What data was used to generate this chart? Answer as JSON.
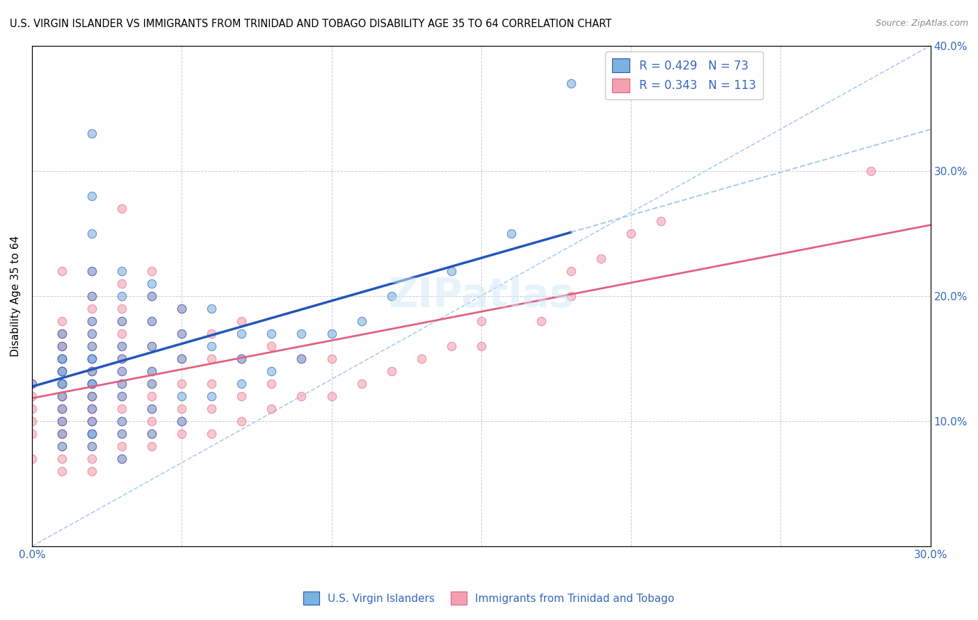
{
  "title": "U.S. VIRGIN ISLANDER VS IMMIGRANTS FROM TRINIDAD AND TOBAGO DISABILITY AGE 35 TO 64 CORRELATION CHART",
  "source": "Source: ZipAtlas.com",
  "ylabel": "Disability Age 35 to 64",
  "xlabel": "",
  "xlim": [
    0.0,
    0.3
  ],
  "ylim": [
    0.0,
    0.4
  ],
  "xticks": [
    0.0,
    0.05,
    0.1,
    0.15,
    0.2,
    0.25,
    0.3
  ],
  "yticks": [
    0.0,
    0.1,
    0.2,
    0.3,
    0.4
  ],
  "xticklabels": [
    "0.0%",
    "",
    "",
    "",
    "",
    "",
    "30.0%"
  ],
  "yticklabels": [
    "",
    "10.0%",
    "20.0%",
    "30.0%",
    "40.0%"
  ],
  "blue_R": 0.429,
  "blue_N": 73,
  "pink_R": 0.343,
  "pink_N": 113,
  "blue_color": "#7ab3e0",
  "pink_color": "#f4a0b0",
  "blue_line_color": "#2255bb",
  "pink_line_color": "#e06080",
  "diagonal_color": "#aaccee",
  "legend_R_color": "#3366cc",
  "legend_N_color": "#3366cc",
  "watermark": "ZIPatlas",
  "blue_scatter_x": [
    0.0,
    0.01,
    0.01,
    0.01,
    0.01,
    0.01,
    0.01,
    0.01,
    0.01,
    0.01,
    0.01,
    0.01,
    0.01,
    0.01,
    0.02,
    0.02,
    0.02,
    0.02,
    0.02,
    0.02,
    0.02,
    0.02,
    0.02,
    0.02,
    0.02,
    0.02,
    0.02,
    0.02,
    0.02,
    0.02,
    0.02,
    0.02,
    0.02,
    0.03,
    0.03,
    0.03,
    0.03,
    0.03,
    0.03,
    0.03,
    0.03,
    0.03,
    0.03,
    0.03,
    0.04,
    0.04,
    0.04,
    0.04,
    0.04,
    0.04,
    0.04,
    0.04,
    0.05,
    0.05,
    0.05,
    0.05,
    0.05,
    0.06,
    0.06,
    0.06,
    0.07,
    0.07,
    0.07,
    0.08,
    0.08,
    0.09,
    0.09,
    0.1,
    0.11,
    0.12,
    0.14,
    0.16,
    0.18
  ],
  "blue_scatter_y": [
    0.13,
    0.08,
    0.09,
    0.1,
    0.11,
    0.12,
    0.13,
    0.13,
    0.14,
    0.14,
    0.15,
    0.15,
    0.16,
    0.17,
    0.08,
    0.09,
    0.09,
    0.1,
    0.11,
    0.12,
    0.13,
    0.13,
    0.14,
    0.15,
    0.15,
    0.16,
    0.17,
    0.18,
    0.2,
    0.22,
    0.25,
    0.28,
    0.33,
    0.07,
    0.09,
    0.1,
    0.12,
    0.13,
    0.14,
    0.15,
    0.16,
    0.18,
    0.2,
    0.22,
    0.09,
    0.11,
    0.13,
    0.14,
    0.16,
    0.18,
    0.2,
    0.21,
    0.1,
    0.12,
    0.15,
    0.17,
    0.19,
    0.12,
    0.16,
    0.19,
    0.13,
    0.15,
    0.17,
    0.14,
    0.17,
    0.15,
    0.17,
    0.17,
    0.18,
    0.2,
    0.22,
    0.25,
    0.37
  ],
  "pink_scatter_x": [
    0.0,
    0.0,
    0.0,
    0.0,
    0.0,
    0.0,
    0.01,
    0.01,
    0.01,
    0.01,
    0.01,
    0.01,
    0.01,
    0.01,
    0.01,
    0.01,
    0.01,
    0.01,
    0.01,
    0.01,
    0.01,
    0.01,
    0.01,
    0.01,
    0.01,
    0.01,
    0.01,
    0.01,
    0.01,
    0.01,
    0.02,
    0.02,
    0.02,
    0.02,
    0.02,
    0.02,
    0.02,
    0.02,
    0.02,
    0.02,
    0.02,
    0.02,
    0.02,
    0.02,
    0.02,
    0.02,
    0.02,
    0.02,
    0.02,
    0.02,
    0.02,
    0.03,
    0.03,
    0.03,
    0.03,
    0.03,
    0.03,
    0.03,
    0.03,
    0.03,
    0.03,
    0.03,
    0.03,
    0.03,
    0.03,
    0.03,
    0.04,
    0.04,
    0.04,
    0.04,
    0.04,
    0.04,
    0.04,
    0.04,
    0.04,
    0.04,
    0.04,
    0.05,
    0.05,
    0.05,
    0.05,
    0.05,
    0.05,
    0.05,
    0.06,
    0.06,
    0.06,
    0.06,
    0.06,
    0.07,
    0.07,
    0.07,
    0.07,
    0.08,
    0.08,
    0.08,
    0.09,
    0.09,
    0.1,
    0.1,
    0.11,
    0.12,
    0.13,
    0.14,
    0.15,
    0.15,
    0.17,
    0.18,
    0.18,
    0.19,
    0.2,
    0.21,
    0.28
  ],
  "pink_scatter_y": [
    0.07,
    0.09,
    0.1,
    0.11,
    0.12,
    0.13,
    0.06,
    0.07,
    0.08,
    0.09,
    0.09,
    0.1,
    0.1,
    0.11,
    0.11,
    0.12,
    0.12,
    0.13,
    0.13,
    0.13,
    0.14,
    0.14,
    0.15,
    0.15,
    0.16,
    0.16,
    0.17,
    0.17,
    0.18,
    0.22,
    0.06,
    0.07,
    0.08,
    0.09,
    0.1,
    0.1,
    0.11,
    0.11,
    0.12,
    0.12,
    0.13,
    0.13,
    0.14,
    0.14,
    0.15,
    0.16,
    0.17,
    0.18,
    0.19,
    0.2,
    0.22,
    0.07,
    0.08,
    0.09,
    0.1,
    0.11,
    0.12,
    0.13,
    0.14,
    0.15,
    0.16,
    0.17,
    0.18,
    0.19,
    0.21,
    0.27,
    0.08,
    0.09,
    0.1,
    0.11,
    0.12,
    0.13,
    0.14,
    0.16,
    0.18,
    0.2,
    0.22,
    0.09,
    0.1,
    0.11,
    0.13,
    0.15,
    0.17,
    0.19,
    0.09,
    0.11,
    0.13,
    0.15,
    0.17,
    0.1,
    0.12,
    0.15,
    0.18,
    0.11,
    0.13,
    0.16,
    0.12,
    0.15,
    0.12,
    0.15,
    0.13,
    0.14,
    0.15,
    0.16,
    0.16,
    0.18,
    0.18,
    0.2,
    0.22,
    0.23,
    0.25,
    0.26,
    0.3
  ]
}
